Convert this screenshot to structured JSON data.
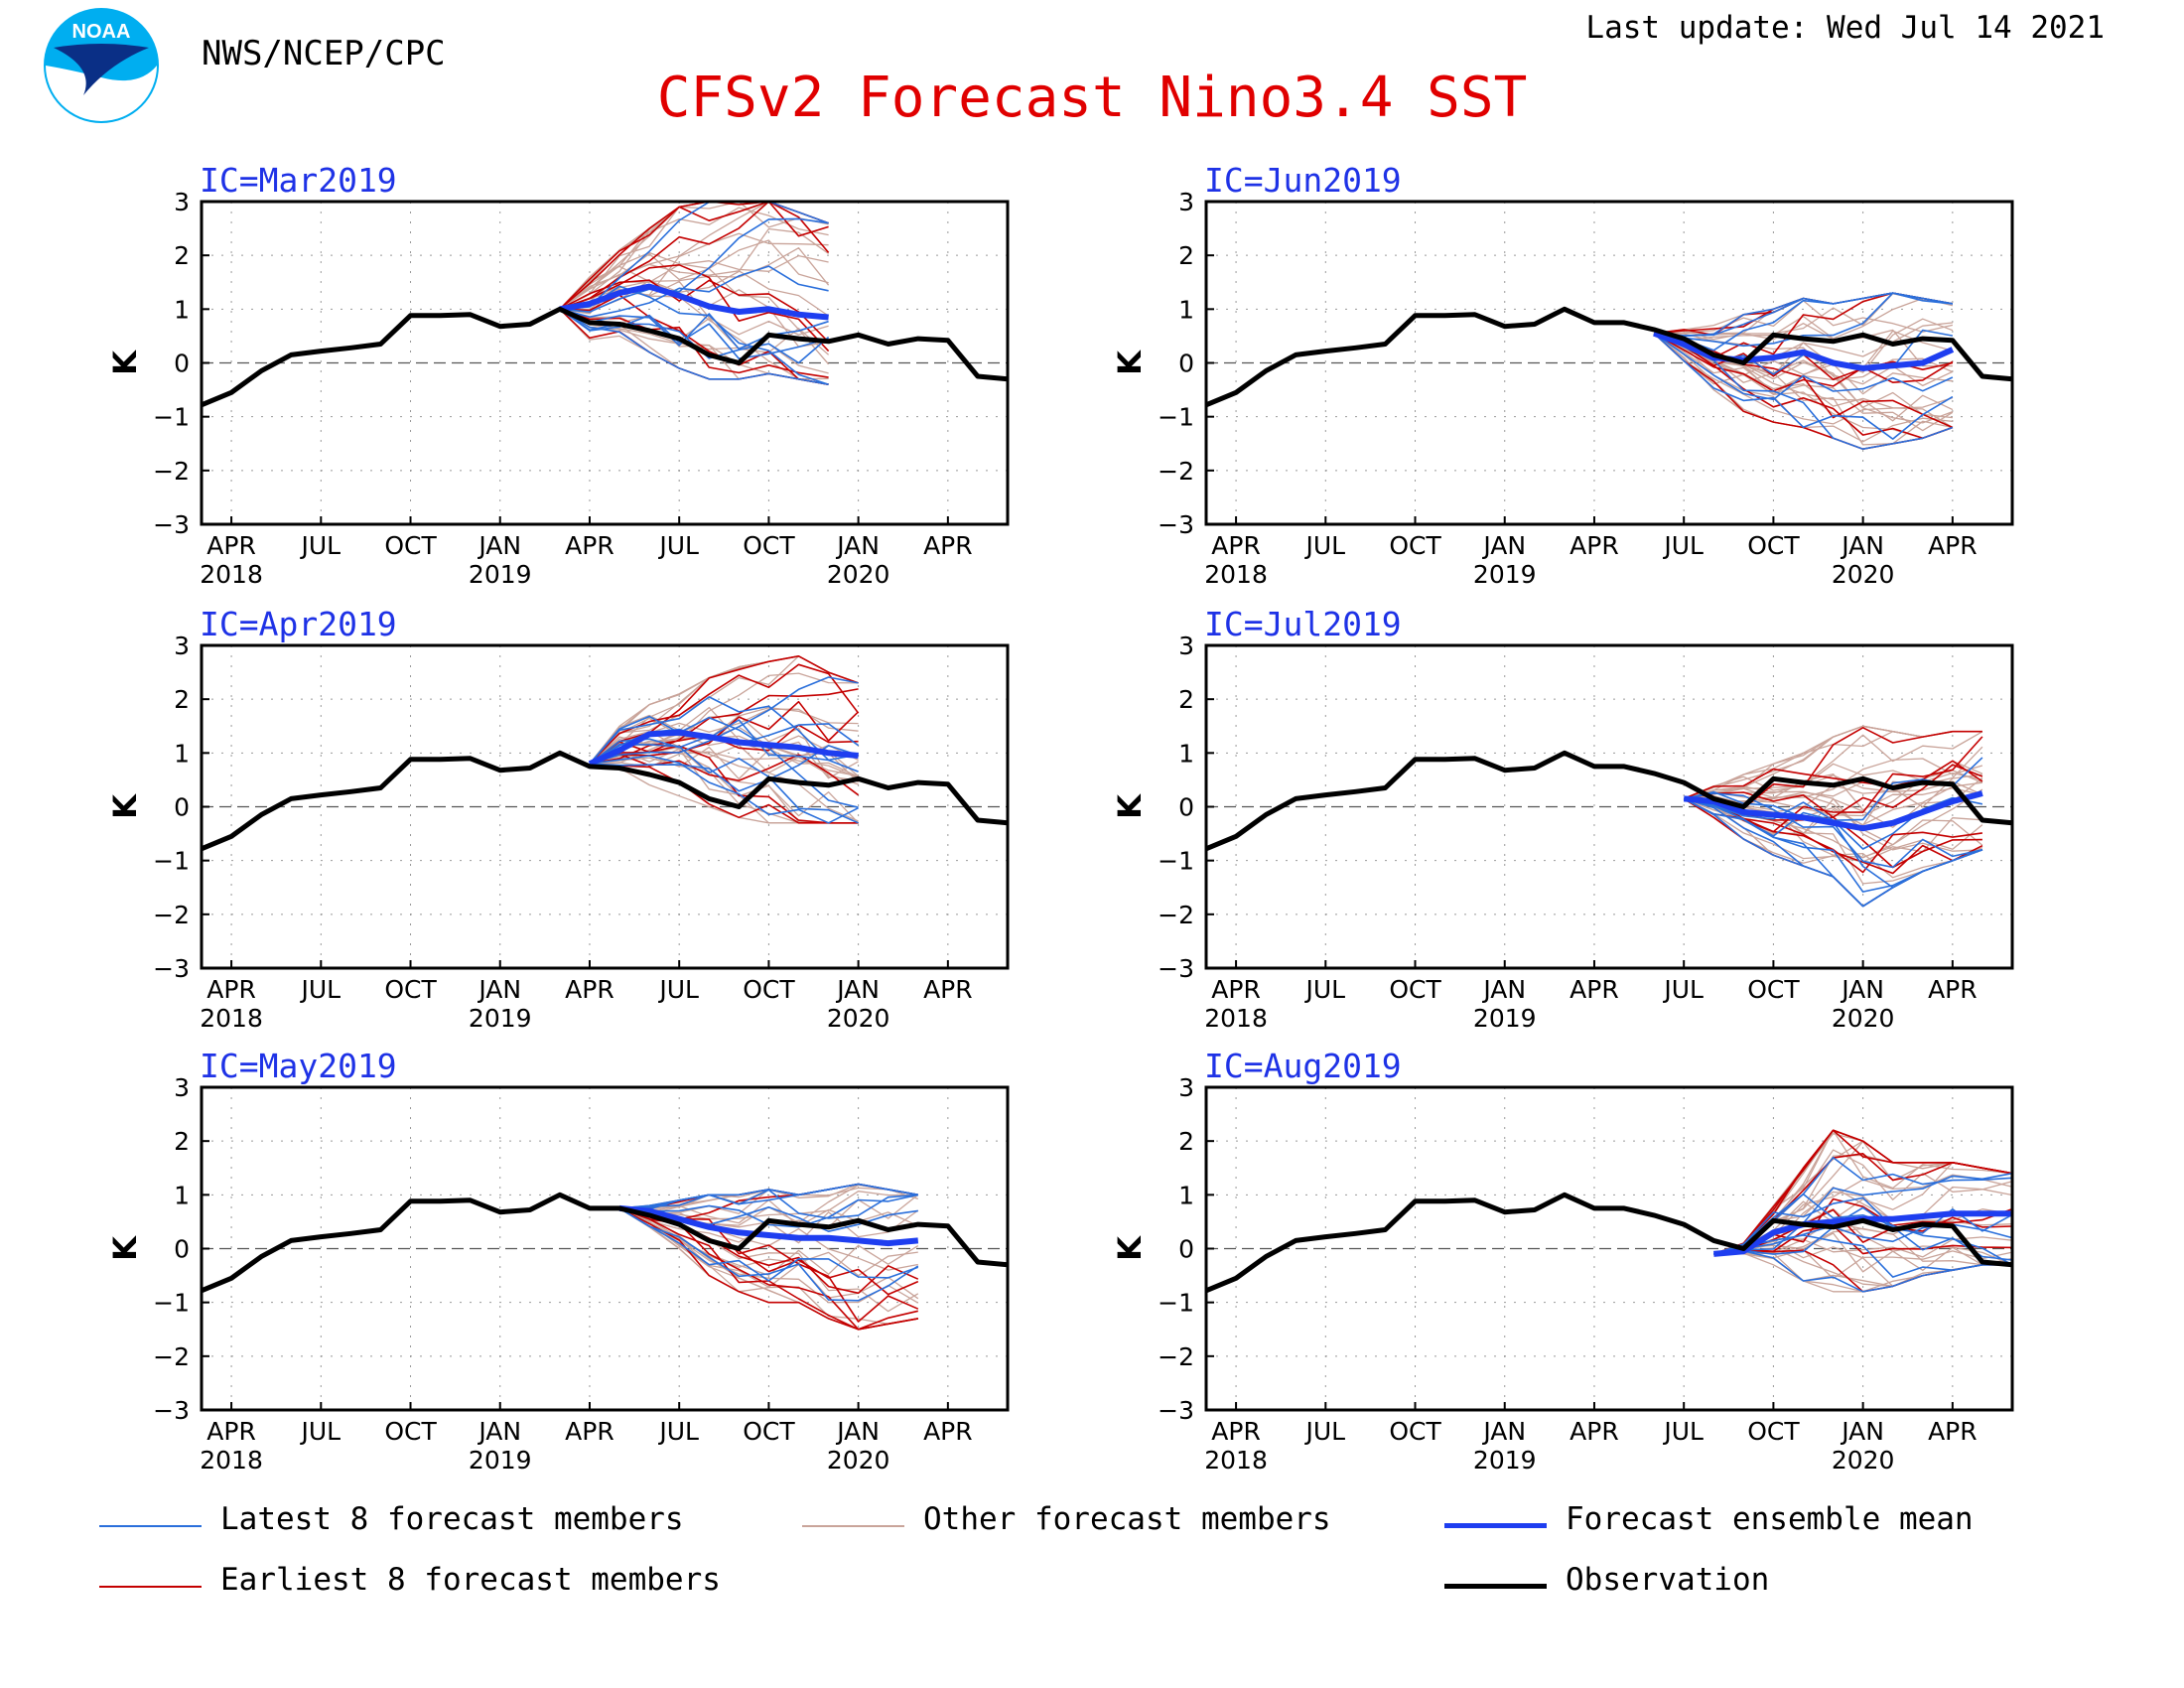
{
  "header": {
    "agency": "NWS/NCEP/CPC",
    "title": "CFSv2 Forecast Nino3.4 SST",
    "last_update": "Last update: Wed Jul 14 2021",
    "logo_text": "NOAA"
  },
  "colors": {
    "title": "#e00000",
    "ic_label": "#1e32e6",
    "latest": "#2a6fdb",
    "earliest": "#c40000",
    "other": "#c9a49a",
    "mean": "#1e3ef0",
    "observation": "#000000"
  },
  "legend": {
    "latest": "Latest 8 forecast members",
    "other": "Other forecast members",
    "mean": "Forecast ensemble mean",
    "earliest": "Earliest 8 forecast members",
    "observation": "Observation"
  },
  "chart_data": [
    {
      "type": "line",
      "title": "IC=Mar2019",
      "ylabel": "K",
      "ylim": [
        -3,
        3
      ],
      "yticks": [
        "3",
        "2",
        "1",
        "0",
        "−1",
        "−2",
        "−3"
      ],
      "xticks": [
        {
          "m": 0,
          "l1": "APR",
          "l2": "2018"
        },
        {
          "m": 3,
          "l1": "JUL",
          "l2": ""
        },
        {
          "m": 6,
          "l1": "OCT",
          "l2": ""
        },
        {
          "m": 9,
          "l1": "JAN",
          "l2": "2019"
        },
        {
          "m": 12,
          "l1": "APR",
          "l2": ""
        },
        {
          "m": 15,
          "l1": "JUL",
          "l2": ""
        },
        {
          "m": 18,
          "l1": "OCT",
          "l2": ""
        },
        {
          "m": 21,
          "l1": "JAN",
          "l2": "2020"
        },
        {
          "m": 24,
          "l1": "APR",
          "l2": ""
        }
      ],
      "x_range_months_since_apr2018": [
        -1,
        26
      ],
      "observation": [
        -0.78,
        -0.55,
        -0.15,
        0.15,
        0.22,
        0.28,
        0.35,
        0.88,
        0.88,
        0.9,
        0.68,
        0.72,
        1.0,
        0.75,
        0.72,
        0.6,
        0.45,
        0.15,
        0.0,
        0.52,
        0.45,
        0.4,
        0.52,
        0.35,
        0.45,
        0.42,
        -0.25,
        -0.3
      ],
      "ensemble_mean": {
        "start_month": 11,
        "values": [
          1.0,
          1.1,
          1.3,
          1.42,
          1.25,
          1.05,
          0.95,
          1.0,
          0.9,
          0.85
        ]
      },
      "spread": {
        "start_month": 11,
        "n_points": 10,
        "lo": [
          1.0,
          0.4,
          0.5,
          0.2,
          -0.1,
          -0.3,
          -0.3,
          -0.2,
          -0.3,
          -0.4
        ],
        "hi": [
          1.0,
          1.6,
          2.1,
          2.5,
          2.9,
          3.0,
          3.0,
          3.0,
          2.8,
          2.6
        ]
      }
    },
    {
      "type": "line",
      "title": "IC=Jun2019",
      "ylabel": "K",
      "ylim": [
        -3,
        3
      ],
      "yticks": [
        "3",
        "2",
        "1",
        "0",
        "−1",
        "−2",
        "−3"
      ],
      "xticks": [
        {
          "m": 0,
          "l1": "APR",
          "l2": "2018"
        },
        {
          "m": 3,
          "l1": "JUL",
          "l2": ""
        },
        {
          "m": 6,
          "l1": "OCT",
          "l2": ""
        },
        {
          "m": 9,
          "l1": "JAN",
          "l2": "2019"
        },
        {
          "m": 12,
          "l1": "APR",
          "l2": ""
        },
        {
          "m": 15,
          "l1": "JUL",
          "l2": ""
        },
        {
          "m": 18,
          "l1": "OCT",
          "l2": ""
        },
        {
          "m": 21,
          "l1": "JAN",
          "l2": "2020"
        },
        {
          "m": 24,
          "l1": "APR",
          "l2": ""
        }
      ],
      "x_range_months_since_apr2018": [
        -1,
        26
      ],
      "observation": [
        -0.78,
        -0.55,
        -0.15,
        0.15,
        0.22,
        0.28,
        0.35,
        0.88,
        0.88,
        0.9,
        0.68,
        0.72,
        1.0,
        0.75,
        0.75,
        0.62,
        0.45,
        0.15,
        0.0,
        0.52,
        0.45,
        0.4,
        0.52,
        0.35,
        0.45,
        0.42,
        -0.25,
        -0.3
      ],
      "ensemble_mean": {
        "start_month": 14,
        "values": [
          0.55,
          0.35,
          0.1,
          0.05,
          0.1,
          0.2,
          0.0,
          -0.1,
          -0.05,
          0.0,
          0.25
        ]
      },
      "spread": {
        "start_month": 14,
        "n_points": 11,
        "lo": [
          0.55,
          0.0,
          -0.5,
          -0.9,
          -1.1,
          -1.2,
          -1.4,
          -1.6,
          -1.5,
          -1.4,
          -1.2
        ],
        "hi": [
          0.55,
          0.65,
          0.7,
          0.9,
          1.0,
          1.2,
          1.1,
          1.2,
          1.3,
          1.2,
          1.1
        ]
      }
    },
    {
      "type": "line",
      "title": "IC=Apr2019",
      "ylabel": "K",
      "ylim": [
        -3,
        3
      ],
      "yticks": [
        "3",
        "2",
        "1",
        "0",
        "−1",
        "−2",
        "−3"
      ],
      "xticks": [
        {
          "m": 0,
          "l1": "APR",
          "l2": "2018"
        },
        {
          "m": 3,
          "l1": "JUL",
          "l2": ""
        },
        {
          "m": 6,
          "l1": "OCT",
          "l2": ""
        },
        {
          "m": 9,
          "l1": "JAN",
          "l2": "2019"
        },
        {
          "m": 12,
          "l1": "APR",
          "l2": ""
        },
        {
          "m": 15,
          "l1": "JUL",
          "l2": ""
        },
        {
          "m": 18,
          "l1": "OCT",
          "l2": ""
        },
        {
          "m": 21,
          "l1": "JAN",
          "l2": "2020"
        },
        {
          "m": 24,
          "l1": "APR",
          "l2": ""
        }
      ],
      "x_range_months_since_apr2018": [
        -1,
        26
      ],
      "observation": [
        -0.78,
        -0.55,
        -0.15,
        0.15,
        0.22,
        0.28,
        0.35,
        0.88,
        0.88,
        0.9,
        0.68,
        0.72,
        1.0,
        0.75,
        0.72,
        0.6,
        0.45,
        0.15,
        0.0,
        0.52,
        0.45,
        0.4,
        0.52,
        0.35,
        0.45,
        0.42,
        -0.25,
        -0.3
      ],
      "ensemble_mean": {
        "start_month": 12,
        "values": [
          0.8,
          1.05,
          1.35,
          1.38,
          1.3,
          1.2,
          1.15,
          1.1,
          1.0,
          0.95
        ]
      },
      "spread": {
        "start_month": 12,
        "n_points": 10,
        "lo": [
          0.8,
          0.6,
          0.3,
          0.2,
          0.0,
          -0.2,
          -0.3,
          -0.3,
          -0.3,
          -0.3
        ],
        "hi": [
          0.8,
          1.5,
          1.9,
          2.1,
          2.4,
          2.6,
          2.7,
          2.8,
          2.5,
          2.3
        ]
      }
    },
    {
      "type": "line",
      "title": "IC=Jul2019",
      "ylabel": "K",
      "ylim": [
        -3,
        3
      ],
      "yticks": [
        "3",
        "2",
        "1",
        "0",
        "−1",
        "−2",
        "−3"
      ],
      "xticks": [
        {
          "m": 0,
          "l1": "APR",
          "l2": "2018"
        },
        {
          "m": 3,
          "l1": "JUL",
          "l2": ""
        },
        {
          "m": 6,
          "l1": "OCT",
          "l2": ""
        },
        {
          "m": 9,
          "l1": "JAN",
          "l2": "2019"
        },
        {
          "m": 12,
          "l1": "APR",
          "l2": ""
        },
        {
          "m": 15,
          "l1": "JUL",
          "l2": ""
        },
        {
          "m": 18,
          "l1": "OCT",
          "l2": ""
        },
        {
          "m": 21,
          "l1": "JAN",
          "l2": "2020"
        },
        {
          "m": 24,
          "l1": "APR",
          "l2": ""
        }
      ],
      "x_range_months_since_apr2018": [
        -1,
        26
      ],
      "observation": [
        -0.78,
        -0.55,
        -0.15,
        0.15,
        0.22,
        0.28,
        0.35,
        0.88,
        0.88,
        0.9,
        0.68,
        0.72,
        1.0,
        0.75,
        0.75,
        0.62,
        0.45,
        0.15,
        0.0,
        0.52,
        0.45,
        0.4,
        0.52,
        0.35,
        0.45,
        0.42,
        -0.25,
        -0.3
      ],
      "ensemble_mean": {
        "start_month": 15,
        "values": [
          0.15,
          0.1,
          -0.1,
          -0.15,
          -0.2,
          -0.3,
          -0.4,
          -0.3,
          -0.1,
          0.1,
          0.25
        ]
      },
      "spread": {
        "start_month": 15,
        "n_points": 11,
        "lo": [
          0.15,
          -0.2,
          -0.6,
          -0.9,
          -1.1,
          -1.3,
          -1.85,
          -1.5,
          -1.2,
          -1.0,
          -0.8
        ],
        "hi": [
          0.15,
          0.4,
          0.6,
          0.8,
          1.0,
          1.3,
          1.5,
          1.4,
          1.3,
          1.4,
          1.4
        ]
      }
    },
    {
      "type": "line",
      "title": "IC=May2019",
      "ylabel": "K",
      "ylim": [
        -3,
        3
      ],
      "yticks": [
        "3",
        "2",
        "1",
        "0",
        "−1",
        "−2",
        "−3"
      ],
      "xticks": [
        {
          "m": 0,
          "l1": "APR",
          "l2": "2018"
        },
        {
          "m": 3,
          "l1": "JUL",
          "l2": ""
        },
        {
          "m": 6,
          "l1": "OCT",
          "l2": ""
        },
        {
          "m": 9,
          "l1": "JAN",
          "l2": "2019"
        },
        {
          "m": 12,
          "l1": "APR",
          "l2": ""
        },
        {
          "m": 15,
          "l1": "JUL",
          "l2": ""
        },
        {
          "m": 18,
          "l1": "OCT",
          "l2": ""
        },
        {
          "m": 21,
          "l1": "JAN",
          "l2": "2020"
        },
        {
          "m": 24,
          "l1": "APR",
          "l2": ""
        }
      ],
      "x_range_months_since_apr2018": [
        -1,
        26
      ],
      "observation": [
        -0.78,
        -0.55,
        -0.15,
        0.15,
        0.22,
        0.28,
        0.35,
        0.88,
        0.88,
        0.9,
        0.68,
        0.72,
        1.0,
        0.75,
        0.75,
        0.62,
        0.45,
        0.15,
        0.0,
        0.52,
        0.45,
        0.4,
        0.52,
        0.35,
        0.45,
        0.42,
        -0.25,
        -0.3
      ],
      "ensemble_mean": {
        "start_month": 13,
        "values": [
          0.75,
          0.7,
          0.55,
          0.4,
          0.3,
          0.25,
          0.2,
          0.2,
          0.15,
          0.1,
          0.15
        ]
      },
      "spread": {
        "start_month": 13,
        "n_points": 11,
        "lo": [
          0.75,
          0.4,
          0.0,
          -0.5,
          -0.8,
          -1.0,
          -1.0,
          -1.3,
          -1.5,
          -1.4,
          -1.3
        ],
        "hi": [
          0.75,
          0.8,
          0.9,
          1.0,
          1.0,
          1.1,
          1.0,
          1.1,
          1.2,
          1.1,
          1.0
        ]
      }
    },
    {
      "type": "line",
      "title": "IC=Aug2019",
      "ylabel": "K",
      "ylim": [
        -3,
        3
      ],
      "yticks": [
        "3",
        "2",
        "1",
        "0",
        "−1",
        "−2",
        "−3"
      ],
      "xticks": [
        {
          "m": 0,
          "l1": "APR",
          "l2": "2018"
        },
        {
          "m": 3,
          "l1": "JUL",
          "l2": ""
        },
        {
          "m": 6,
          "l1": "OCT",
          "l2": ""
        },
        {
          "m": 9,
          "l1": "JAN",
          "l2": "2019"
        },
        {
          "m": 12,
          "l1": "APR",
          "l2": ""
        },
        {
          "m": 15,
          "l1": "JUL",
          "l2": ""
        },
        {
          "m": 18,
          "l1": "OCT",
          "l2": ""
        },
        {
          "m": 21,
          "l1": "JAN",
          "l2": "2020"
        },
        {
          "m": 24,
          "l1": "APR",
          "l2": ""
        }
      ],
      "x_range_months_since_apr2018": [
        -1,
        26
      ],
      "observation": [
        -0.78,
        -0.55,
        -0.15,
        0.15,
        0.22,
        0.28,
        0.35,
        0.88,
        0.88,
        0.9,
        0.68,
        0.72,
        1.0,
        0.75,
        0.75,
        0.62,
        0.45,
        0.15,
        0.0,
        0.52,
        0.45,
        0.4,
        0.52,
        0.35,
        0.45,
        0.42,
        -0.25,
        -0.3
      ],
      "ensemble_mean": {
        "start_month": 16,
        "values": [
          -0.1,
          -0.05,
          0.3,
          0.45,
          0.5,
          0.55,
          0.55,
          0.6,
          0.65,
          0.65,
          0.65
        ]
      },
      "spread": {
        "start_month": 16,
        "n_points": 11,
        "lo": [
          -0.1,
          -0.1,
          -0.3,
          -0.6,
          -0.8,
          -0.8,
          -0.7,
          -0.5,
          -0.4,
          -0.3,
          -0.3
        ],
        "hi": [
          -0.1,
          0.1,
          0.8,
          1.5,
          2.2,
          2.0,
          1.6,
          1.6,
          1.6,
          1.5,
          1.4
        ]
      }
    }
  ]
}
